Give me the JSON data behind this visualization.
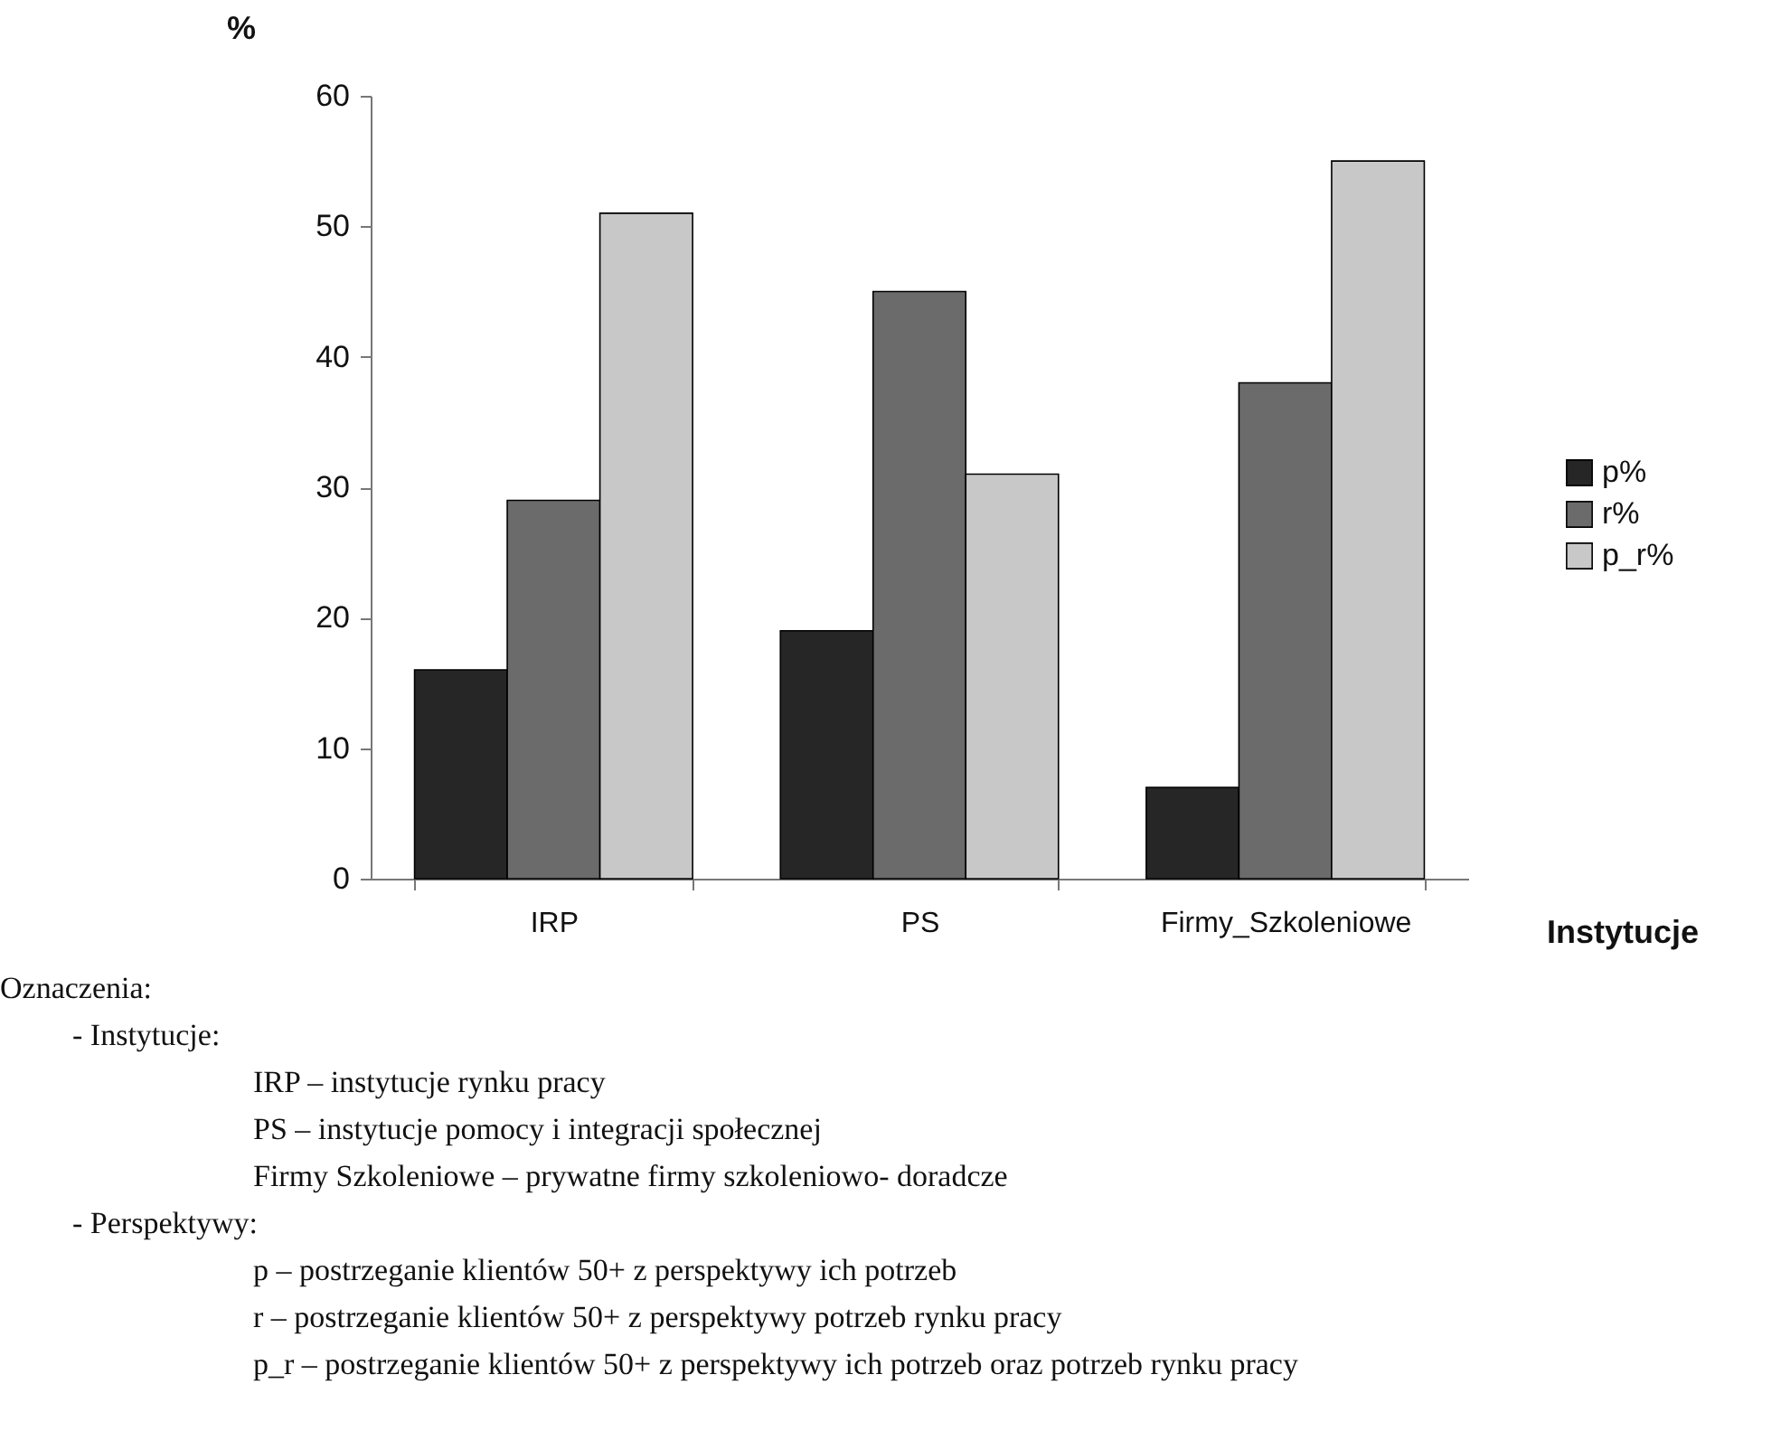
{
  "chart_data": {
    "type": "bar",
    "ylabel": "%",
    "xlabel": "Instytucje",
    "categories": [
      "IRP",
      "PS",
      "Firmy_Szkoleniowe"
    ],
    "series": [
      {
        "name": "p%",
        "color": "#262626",
        "values": [
          16,
          19,
          7
        ]
      },
      {
        "name": "r%",
        "color": "#6b6b6b",
        "values": [
          29,
          45,
          38
        ]
      },
      {
        "name": "p_r%",
        "color": "#c8c8c8",
        "values": [
          51,
          31,
          55
        ]
      }
    ],
    "ylim": [
      0,
      60
    ],
    "yticks": [
      0,
      10,
      20,
      30,
      40,
      50,
      60
    ],
    "grid": false,
    "legend": "right",
    "annotations": [
      "Oznaczenia:",
      "- Instytucje:",
      "IRP – instytucje rynku pracy",
      "PS – instytucje pomocy i integracji społecznej",
      "Firmy Szkoleniowe – prywatne firmy szkoleniowo- doradcze",
      "- Perspektywy:",
      "p – postrzeganie klientów 50+ z perspektywy ich potrzeb",
      "r – postrzeganie klientów 50+ z perspektywy potrzeb rynku pracy",
      "p_r – postrzeganie klientów 50+ z perspektywy ich potrzeb oraz potrzeb rynku pracy"
    ]
  }
}
